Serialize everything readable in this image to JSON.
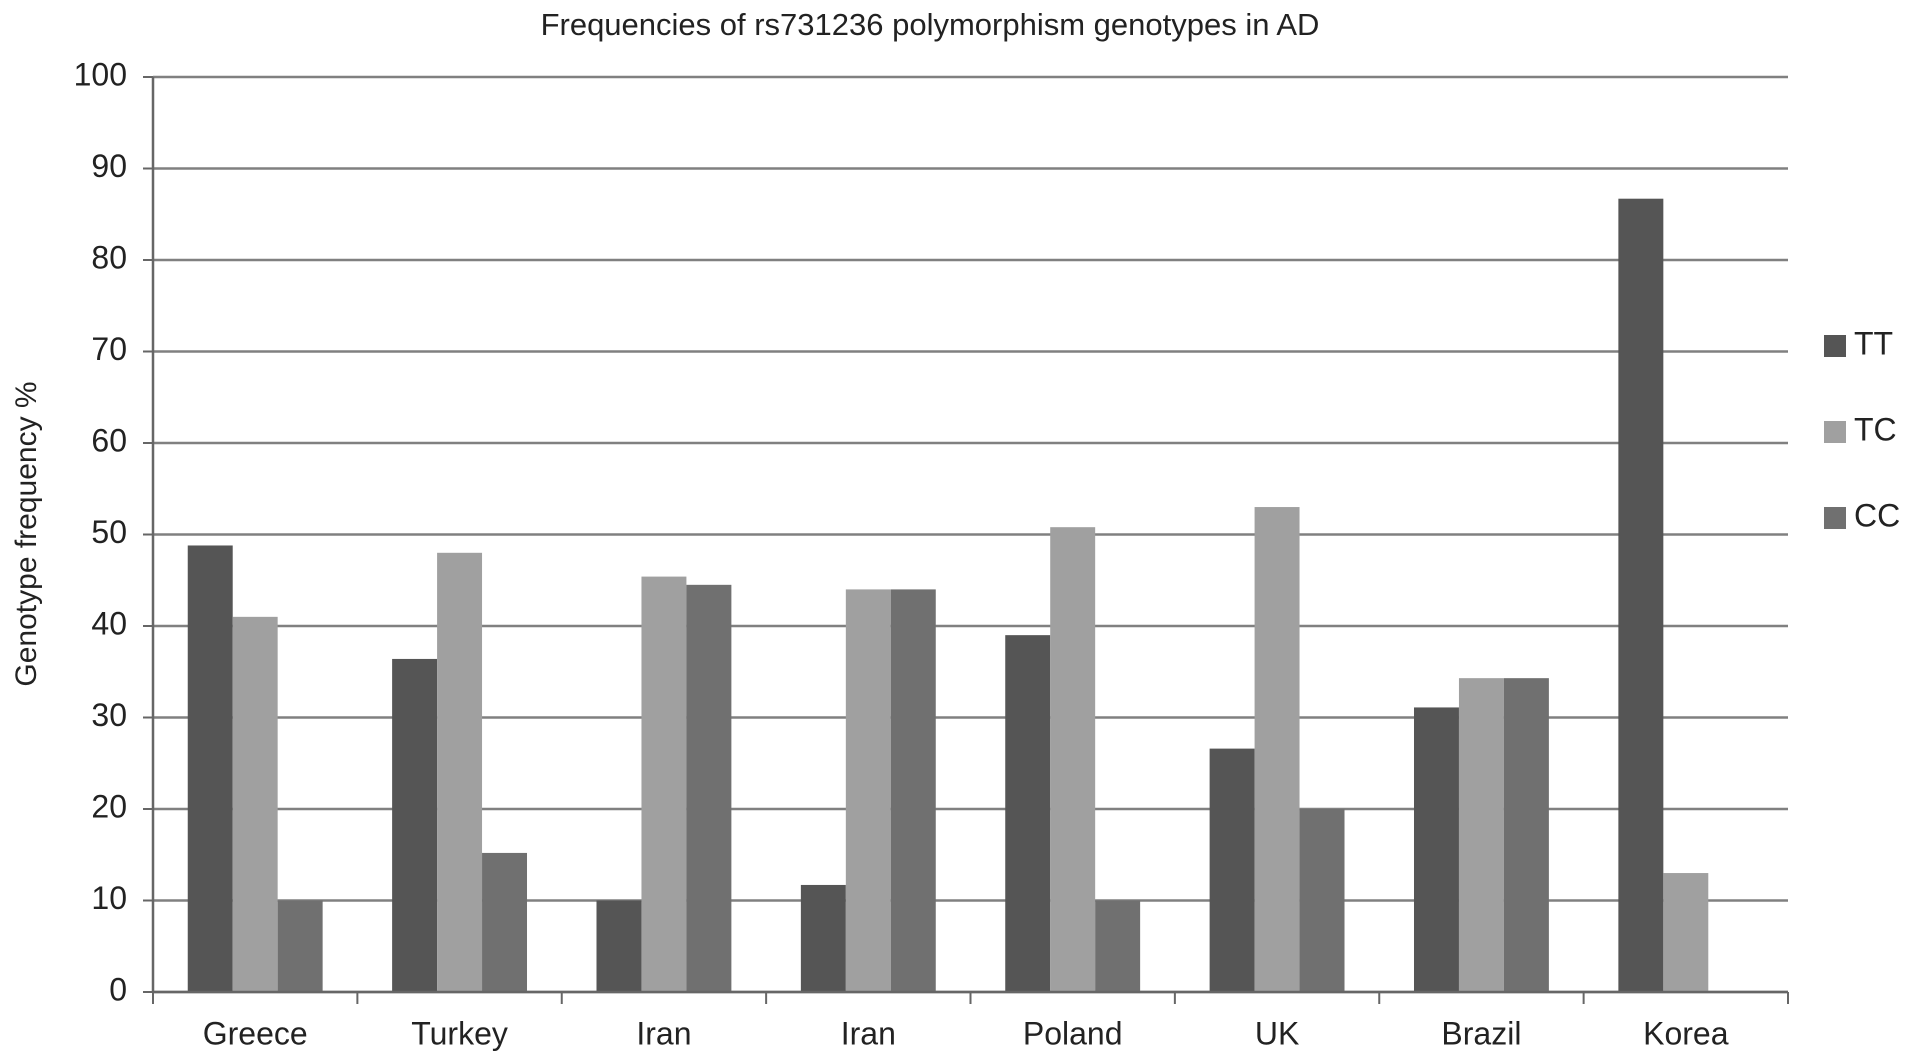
{
  "chart_data": {
    "type": "bar",
    "title": "Frequencies of rs731236 polymorphism genotypes in AD",
    "y_label": "Genotype frequency %",
    "categories": [
      "Greece",
      "Turkey",
      "Iran",
      "Iran",
      "Poland",
      "UK",
      "Brazil",
      "Korea"
    ],
    "series": [
      {
        "name": "TT",
        "color": "#555555",
        "values": [
          48.8,
          36.4,
          10,
          11.7,
          39,
          26.6,
          31.1,
          86.7
        ]
      },
      {
        "name": "TC",
        "color": "#a0a0a0",
        "values": [
          41,
          48,
          45.4,
          44,
          50.8,
          53,
          34.3,
          13
        ]
      },
      {
        "name": "CC",
        "color": "#707070",
        "values": [
          10,
          15.2,
          44.5,
          44,
          10,
          20,
          34.3,
          0
        ]
      }
    ],
    "ylim": [
      0,
      100
    ],
    "yticks": [
      0,
      10,
      20,
      30,
      40,
      50,
      60,
      70,
      80,
      90,
      100
    ],
    "grid": true,
    "legend": "right"
  }
}
